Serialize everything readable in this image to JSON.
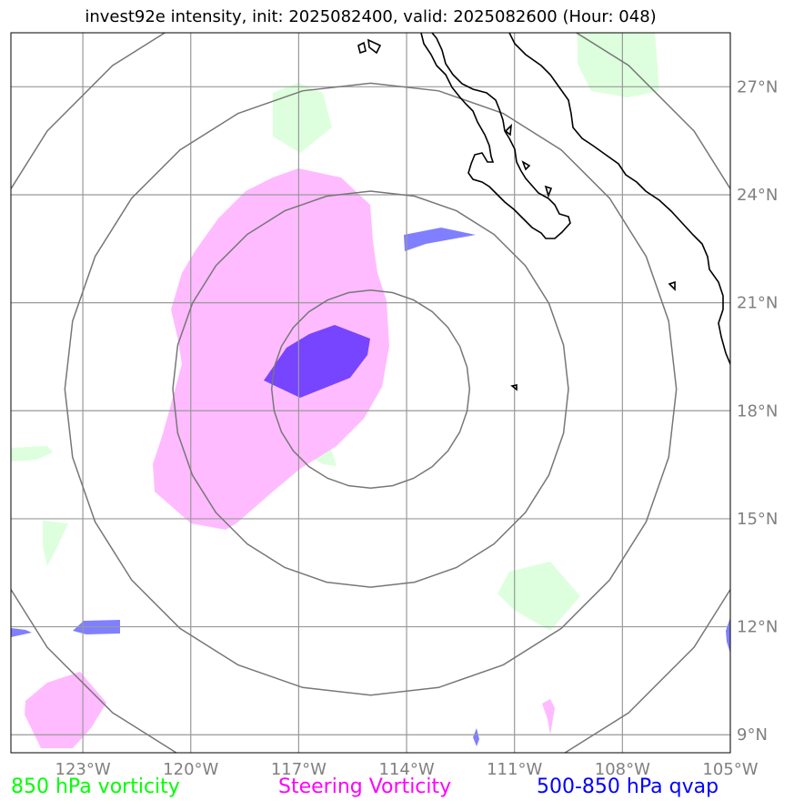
{
  "title": "invest92e intensity, init: 2025082400, valid: 2025082600 (Hour: 048)",
  "map": {
    "lon_range": [
      -125,
      -105
    ],
    "lat_range": [
      8.5,
      28.5
    ],
    "lon_ticks": [
      {
        "lon": -123,
        "label": "123°W"
      },
      {
        "lon": -120,
        "label": "120°W"
      },
      {
        "lon": -117,
        "label": "117°W"
      },
      {
        "lon": -114,
        "label": "114°W"
      },
      {
        "lon": -111,
        "label": "111°W"
      },
      {
        "lon": -108,
        "label": "108°W"
      },
      {
        "lon": -105,
        "label": "105°W"
      }
    ],
    "lat_ticks": [
      {
        "lat": 9,
        "label": "9°N"
      },
      {
        "lat": 12,
        "label": "12°N"
      },
      {
        "lat": 15,
        "label": "15°N"
      },
      {
        "lat": 18,
        "label": "18°N"
      },
      {
        "lat": 21,
        "label": "21°N"
      },
      {
        "lat": 24,
        "label": "24°N"
      },
      {
        "lat": 27,
        "label": "27°N"
      }
    ],
    "storm_center": {
      "lon": -115,
      "lat": 18.6
    },
    "range_rings_deg": [
      2.75,
      5.5,
      8.5,
      11.5
    ],
    "colors": {
      "vorticity_850": "#ddffdd",
      "steering_vorticity": "#ffbbff",
      "qvap": "#7f7fff",
      "overlap": "#7744ff",
      "grid": "#999999",
      "rings": "#777777",
      "coast": "#000000"
    }
  },
  "legend": {
    "green": "850 hPa vorticity",
    "magenta": "Steering Vorticity",
    "blue": "500-850 hPa qvap"
  }
}
